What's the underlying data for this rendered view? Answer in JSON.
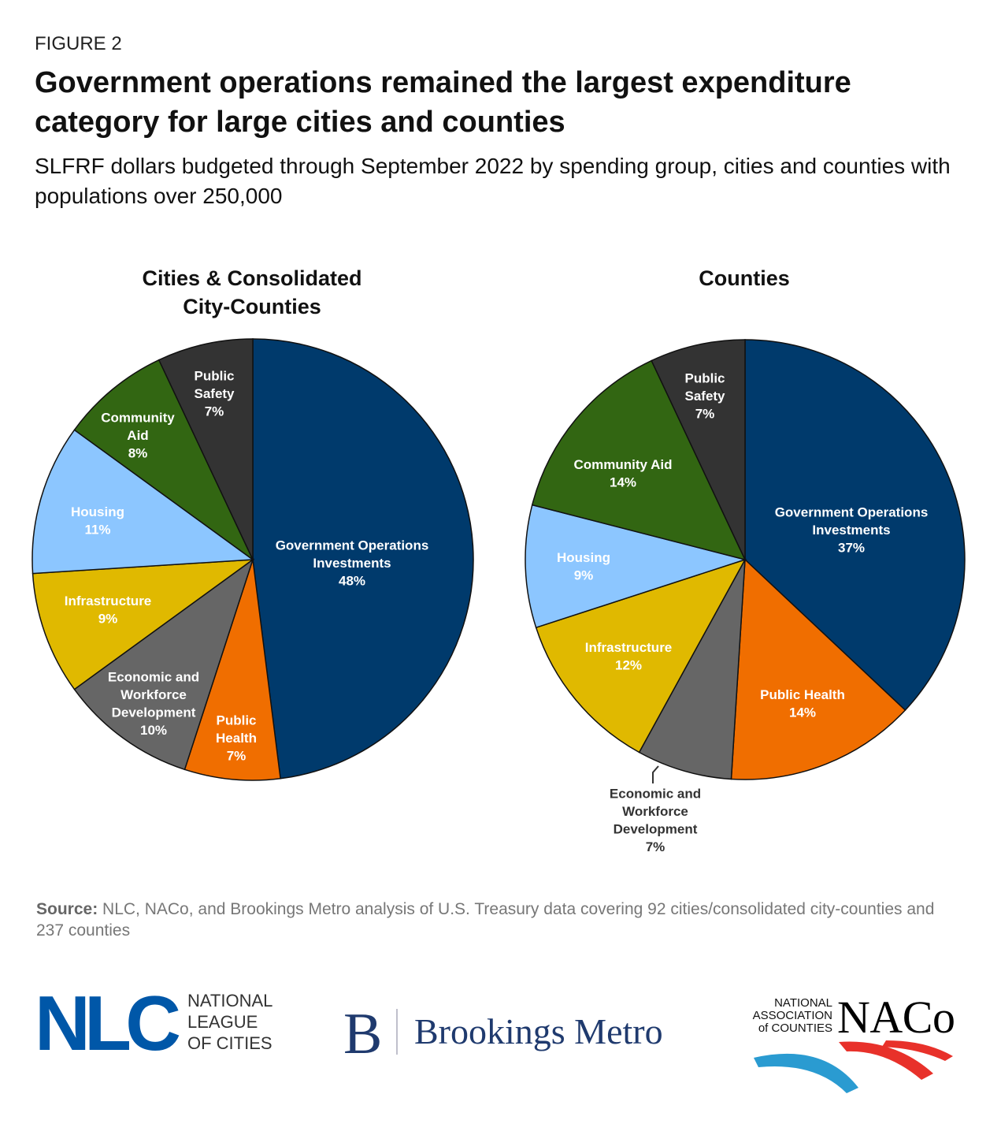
{
  "figure_label": "FIGURE 2",
  "title": "Government operations remained the largest expenditure category for large cities and counties",
  "subtitle": "SLFRF dollars budgeted through September 2022 by spending group, cities and counties with populations over 250,000",
  "chart_data": [
    {
      "type": "pie",
      "title": "Cities & Consolidated City-Counties",
      "categories": [
        "Government Operations Investments",
        "Public Health",
        "Economic and Workforce Development",
        "Infrastructure",
        "Housing",
        "Community Aid",
        "Public Safety"
      ],
      "values": [
        48,
        7,
        10,
        9,
        11,
        8,
        7
      ],
      "unit": "%",
      "data_labels": [
        "48%",
        "7%",
        "10%",
        "9%",
        "11%",
        "8%",
        "7%"
      ],
      "label_lines": [
        [
          "Government Operations",
          "Investments"
        ],
        [
          "Public",
          "Health"
        ],
        [
          "Economic and",
          "Workforce",
          "Development"
        ],
        [
          "Infrastructure"
        ],
        [
          "Housing"
        ],
        [
          "Community",
          "Aid"
        ],
        [
          "Public",
          "Safety"
        ]
      ],
      "start": "12 o'clock, clockwise"
    },
    {
      "type": "pie",
      "title": "Counties",
      "categories": [
        "Government Operations Investments",
        "Public Health",
        "Economic and Workforce Development",
        "Infrastructure",
        "Housing",
        "Community Aid",
        "Public Safety"
      ],
      "values": [
        37,
        14,
        7,
        12,
        9,
        14,
        7
      ],
      "unit": "%",
      "data_labels": [
        "37%",
        "14%",
        "7%",
        "12%",
        "9%",
        "14%",
        "7%"
      ],
      "label_lines": [
        [
          "Government Operations",
          "Investments"
        ],
        [
          "Public Health"
        ],
        [
          "Economic and",
          "Workforce",
          "Development"
        ],
        [
          "Infrastructure"
        ],
        [
          "Housing"
        ],
        [
          "Community Aid"
        ],
        [
          "Public",
          "Safety"
        ]
      ],
      "start": "12 o'clock, clockwise"
    }
  ],
  "colors": {
    "Government Operations Investments": "#003a6c",
    "Public Health": "#f06e00",
    "Economic and Workforce Development": "#666666",
    "Infrastructure": "#e0b900",
    "Housing": "#8cc6ff",
    "Community Aid": "#326612",
    "Public Safety": "#333333"
  },
  "source": {
    "label": "Source:",
    "text": "NLC, NACo, and Brookings Metro analysis of U.S. Treasury data covering 92 cities/consolidated city-counties and 237 counties"
  },
  "logos": {
    "nlc": {
      "mark": "NLC",
      "lines": [
        "NATIONAL",
        "LEAGUE",
        "OF CITIES"
      ]
    },
    "brookings": {
      "mark": "B",
      "text": "Brookings Metro"
    },
    "naco": {
      "mark": "NACo",
      "lines": [
        "NATIONAL",
        "ASSOCIATION",
        "of COUNTIES"
      ]
    }
  }
}
